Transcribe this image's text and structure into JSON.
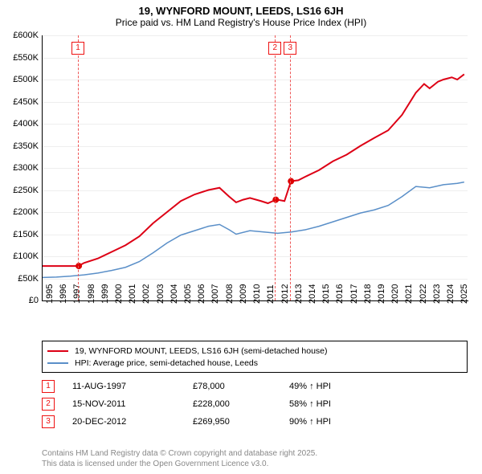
{
  "title": "19, WYNFORD MOUNT, LEEDS, LS16 6JH",
  "subtitle": "Price paid vs. HM Land Registry's House Price Index (HPI)",
  "chart": {
    "xlim": [
      1995,
      2025.8
    ],
    "ylim": [
      0,
      600000
    ],
    "ytick_step": 50000,
    "ytick_labels": [
      "£0",
      "£50K",
      "£100K",
      "£150K",
      "£200K",
      "£250K",
      "£300K",
      "£350K",
      "£400K",
      "£450K",
      "£500K",
      "£550K",
      "£600K"
    ],
    "xticks": [
      1995,
      1996,
      1997,
      1998,
      1999,
      2000,
      2001,
      2002,
      2003,
      2004,
      2005,
      2006,
      2007,
      2008,
      2009,
      2010,
      2011,
      2012,
      2013,
      2014,
      2015,
      2016,
      2017,
      2018,
      2019,
      2020,
      2021,
      2022,
      2023,
      2024,
      2025
    ],
    "background_color": "#ffffff",
    "grid_color": "#eeeeee",
    "series": [
      {
        "name": "price_paid",
        "label": "19, WYNFORD MOUNT, LEEDS, LS16 6JH (semi-detached house)",
        "color": "#dd0015",
        "line_width": 2,
        "data": [
          [
            1995,
            78000
          ],
          [
            1997.6,
            78000
          ],
          [
            1998,
            85000
          ],
          [
            1999,
            95000
          ],
          [
            2000,
            110000
          ],
          [
            2001,
            125000
          ],
          [
            2002,
            145000
          ],
          [
            2003,
            175000
          ],
          [
            2004,
            200000
          ],
          [
            2005,
            225000
          ],
          [
            2006,
            240000
          ],
          [
            2007,
            250000
          ],
          [
            2007.8,
            255000
          ],
          [
            2008.5,
            235000
          ],
          [
            2009,
            222000
          ],
          [
            2009.5,
            228000
          ],
          [
            2010,
            232000
          ],
          [
            2010.8,
            225000
          ],
          [
            2011.3,
            220000
          ],
          [
            2011.87,
            228000
          ],
          [
            2012,
            228000
          ],
          [
            2012.5,
            225000
          ],
          [
            2012.97,
            269950
          ],
          [
            2013.5,
            272000
          ],
          [
            2014,
            280000
          ],
          [
            2015,
            295000
          ],
          [
            2016,
            315000
          ],
          [
            2017,
            330000
          ],
          [
            2018,
            350000
          ],
          [
            2019,
            368000
          ],
          [
            2020,
            385000
          ],
          [
            2021,
            420000
          ],
          [
            2022,
            470000
          ],
          [
            2022.6,
            490000
          ],
          [
            2023,
            480000
          ],
          [
            2023.6,
            495000
          ],
          [
            2024,
            500000
          ],
          [
            2024.6,
            505000
          ],
          [
            2025,
            500000
          ],
          [
            2025.5,
            512000
          ]
        ],
        "sale_points": [
          {
            "x": 1997.62,
            "y": 78000
          },
          {
            "x": 2011.87,
            "y": 228000
          },
          {
            "x": 2012.97,
            "y": 269950
          }
        ]
      },
      {
        "name": "hpi",
        "label": "HPI: Average price, semi-detached house, Leeds",
        "color": "#5a8fc8",
        "line_width": 1.5,
        "data": [
          [
            1995,
            52000
          ],
          [
            1996,
            53000
          ],
          [
            1997,
            55000
          ],
          [
            1998,
            58000
          ],
          [
            1999,
            62000
          ],
          [
            2000,
            68000
          ],
          [
            2001,
            75000
          ],
          [
            2002,
            88000
          ],
          [
            2003,
            108000
          ],
          [
            2004,
            130000
          ],
          [
            2005,
            148000
          ],
          [
            2006,
            158000
          ],
          [
            2007,
            168000
          ],
          [
            2007.8,
            172000
          ],
          [
            2008.5,
            160000
          ],
          [
            2009,
            150000
          ],
          [
            2010,
            158000
          ],
          [
            2011,
            155000
          ],
          [
            2012,
            152000
          ],
          [
            2013,
            155000
          ],
          [
            2014,
            160000
          ],
          [
            2015,
            168000
          ],
          [
            2016,
            178000
          ],
          [
            2017,
            188000
          ],
          [
            2018,
            198000
          ],
          [
            2019,
            205000
          ],
          [
            2020,
            215000
          ],
          [
            2021,
            235000
          ],
          [
            2022,
            258000
          ],
          [
            2023,
            255000
          ],
          [
            2024,
            262000
          ],
          [
            2025,
            265000
          ],
          [
            2025.5,
            268000
          ]
        ]
      }
    ],
    "markers": [
      {
        "num": "1",
        "x": 1997.62,
        "color": "#ee5555"
      },
      {
        "num": "2",
        "x": 2011.87,
        "color": "#ee5555"
      },
      {
        "num": "3",
        "x": 2012.97,
        "color": "#ee5555"
      }
    ]
  },
  "legend": [
    {
      "color": "#dd0015",
      "label": "19, WYNFORD MOUNT, LEEDS, LS16 6JH (semi-detached house)"
    },
    {
      "color": "#5a8fc8",
      "label": "HPI: Average price, semi-detached house, Leeds"
    }
  ],
  "sales": [
    {
      "num": "1",
      "date": "11-AUG-1997",
      "price": "£78,000",
      "pct": "49% ↑ HPI"
    },
    {
      "num": "2",
      "date": "15-NOV-2011",
      "price": "£228,000",
      "pct": "58% ↑ HPI"
    },
    {
      "num": "3",
      "date": "20-DEC-2012",
      "price": "£269,950",
      "pct": "90% ↑ HPI"
    }
  ],
  "footer_line1": "Contains HM Land Registry data © Crown copyright and database right 2025.",
  "footer_line2": "This data is licensed under the Open Government Licence v3.0."
}
